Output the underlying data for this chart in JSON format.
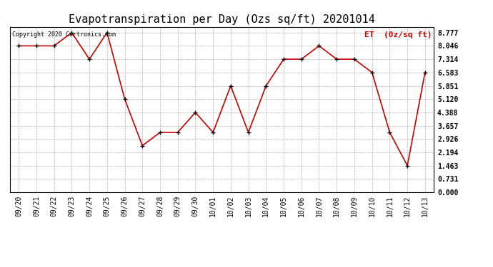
{
  "title": "Evapotranspiration per Day (Ozs sq/ft) 20201014",
  "legend_label": "ET  (0z/sq ft)",
  "copyright": "Copyright 2020 Cartronics.com",
  "dates": [
    "09/20",
    "09/21",
    "09/22",
    "09/23",
    "09/24",
    "09/25",
    "09/26",
    "09/27",
    "09/28",
    "09/29",
    "09/30",
    "10/01",
    "10/02",
    "10/03",
    "10/04",
    "10/05",
    "10/06",
    "10/07",
    "10/08",
    "10/09",
    "10/10",
    "10/11",
    "10/12",
    "10/13"
  ],
  "values": [
    8.046,
    8.046,
    8.046,
    8.777,
    7.314,
    8.777,
    5.12,
    2.56,
    3.29,
    3.29,
    4.388,
    3.29,
    5.851,
    3.29,
    5.851,
    7.314,
    7.314,
    8.046,
    7.314,
    7.314,
    6.583,
    3.29,
    1.463,
    6.583
  ],
  "line_color": "#cc0000",
  "marker_color": "#000000",
  "grid_color": "#b0b0b0",
  "background_color": "#ffffff",
  "yticks": [
    0.0,
    0.731,
    1.463,
    2.194,
    2.926,
    3.657,
    4.388,
    5.12,
    5.851,
    6.583,
    7.314,
    8.046,
    8.777
  ],
  "ylim": [
    0.0,
    9.1
  ],
  "title_fontsize": 11,
  "legend_color": "#cc0000",
  "copyright_color": "#000000"
}
